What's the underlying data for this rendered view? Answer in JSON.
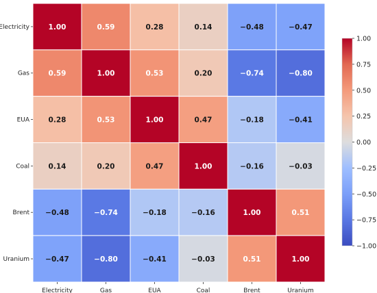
{
  "chart_data": {
    "type": "heatmap",
    "title": "",
    "xlabel": "",
    "ylabel": "",
    "row_labels": [
      "Electricity",
      "Gas",
      "EUA",
      "Coal",
      "Brent",
      "Uranium"
    ],
    "col_labels": [
      "Electricity",
      "Gas",
      "EUA",
      "Coal",
      "Brent",
      "Uranium"
    ],
    "values": [
      [
        1.0,
        0.59,
        0.28,
        0.14,
        -0.48,
        -0.47
      ],
      [
        0.59,
        1.0,
        0.53,
        0.2,
        -0.74,
        -0.8
      ],
      [
        0.28,
        0.53,
        1.0,
        0.47,
        -0.18,
        -0.41
      ],
      [
        0.14,
        0.2,
        0.47,
        1.0,
        -0.16,
        -0.03
      ],
      [
        -0.48,
        -0.74,
        -0.18,
        -0.16,
        1.0,
        0.51
      ],
      [
        -0.47,
        -0.8,
        -0.41,
        -0.03,
        0.51,
        1.0
      ]
    ],
    "value_labels": [
      [
        "1.00",
        "0.59",
        "0.28",
        "0.14",
        "−0.48",
        "−0.47"
      ],
      [
        "0.59",
        "1.00",
        "0.53",
        "0.20",
        "−0.74",
        "−0.80"
      ],
      [
        "0.28",
        "0.53",
        "1.00",
        "0.47",
        "−0.18",
        "−0.41"
      ],
      [
        "0.14",
        "0.20",
        "0.47",
        "1.00",
        "−0.16",
        "−0.03"
      ],
      [
        "−0.48",
        "−0.74",
        "−0.18",
        "−0.16",
        "1.00",
        "0.51"
      ],
      [
        "−0.47",
        "−0.80",
        "−0.41",
        "−0.03",
        "0.51",
        "1.00"
      ]
    ],
    "vmin": -1.0,
    "vmax": 1.0,
    "colormap": "coolwarm",
    "colorbar_ticks": [
      1.0,
      0.75,
      0.5,
      0.25,
      0.0,
      -0.25,
      -0.5,
      -0.75,
      -1.0
    ],
    "colorbar_tick_labels": [
      "1.00",
      "0.75",
      "0.50",
      "0.25",
      "0.00",
      "−0.25",
      "−0.50",
      "−0.75",
      "−1.00"
    ],
    "grid_lines": "white",
    "colorbar_position": "right"
  }
}
